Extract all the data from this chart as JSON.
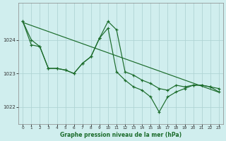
{
  "background_color": "#d0eeee",
  "line_color": "#1a6b2a",
  "grid_color": "#b0d4d4",
  "xlabel": "Graphe pression niveau de la mer (hPa)",
  "ylim": [
    1021.5,
    1025.1
  ],
  "yticks": [
    1022,
    1023,
    1024
  ],
  "xticks": [
    0,
    1,
    2,
    3,
    4,
    5,
    6,
    7,
    8,
    9,
    10,
    11,
    12,
    13,
    14,
    15,
    16,
    17,
    18,
    19,
    20,
    21,
    22,
    23
  ],
  "line1_x": [
    0,
    1,
    2,
    3,
    4,
    5,
    6,
    7,
    8,
    9,
    10,
    11,
    12,
    13,
    14,
    15,
    16,
    17,
    18,
    19,
    20,
    21,
    22,
    23
  ],
  "line1_y": [
    1024.55,
    1024.0,
    1023.8,
    1023.15,
    1023.15,
    1023.1,
    1023.0,
    1023.3,
    1023.5,
    1024.05,
    1024.55,
    1024.3,
    1023.05,
    1022.95,
    1022.8,
    1022.7,
    1022.55,
    1022.5,
    1022.65,
    1022.6,
    1022.65,
    1022.65,
    1022.6,
    1022.55
  ],
  "line2_x": [
    0,
    1,
    2,
    3,
    4,
    5,
    6,
    7,
    8,
    9,
    10,
    11,
    12,
    13,
    14,
    15,
    16,
    17,
    18,
    19,
    20,
    21,
    22,
    23
  ],
  "line2_y": [
    1024.55,
    1023.85,
    1023.8,
    1023.15,
    1023.15,
    1023.1,
    1023.0,
    1023.3,
    1023.5,
    1024.05,
    1024.35,
    1023.05,
    1022.8,
    1022.6,
    1022.5,
    1022.3,
    1021.85,
    1022.3,
    1022.45,
    1022.55,
    1022.65,
    1022.65,
    1022.6,
    1022.45
  ],
  "trend_x": [
    0,
    23
  ],
  "trend_y": [
    1024.52,
    1022.44
  ]
}
